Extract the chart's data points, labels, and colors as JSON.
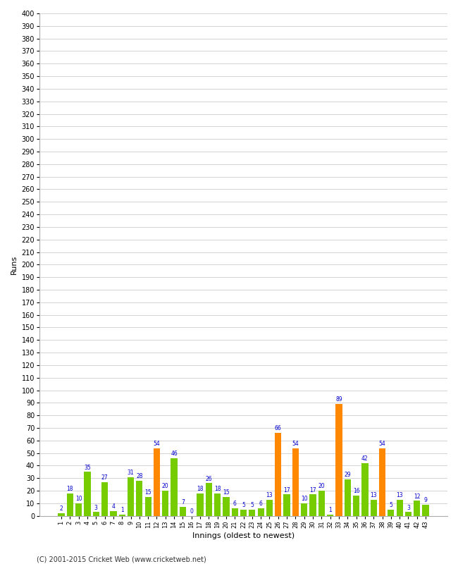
{
  "innings": [
    1,
    2,
    3,
    4,
    5,
    6,
    7,
    8,
    9,
    10,
    11,
    12,
    13,
    14,
    15,
    16,
    17,
    18,
    19,
    20,
    21,
    22,
    23,
    24,
    25,
    26,
    27,
    28,
    29,
    30,
    31,
    32,
    33,
    34,
    35,
    36,
    37,
    38,
    39,
    40,
    41,
    42,
    43
  ],
  "values": [
    2,
    18,
    10,
    35,
    3,
    27,
    4,
    1,
    31,
    28,
    15,
    54,
    20,
    46,
    7,
    0,
    18,
    26,
    18,
    15,
    6,
    5,
    5,
    6,
    13,
    66,
    17,
    54,
    10,
    17,
    20,
    1,
    89,
    29,
    16,
    42,
    13,
    54,
    5,
    13,
    3,
    12,
    9
  ],
  "colors": [
    "#77cc00",
    "#77cc00",
    "#77cc00",
    "#77cc00",
    "#77cc00",
    "#77cc00",
    "#77cc00",
    "#77cc00",
    "#77cc00",
    "#77cc00",
    "#77cc00",
    "#ff8800",
    "#77cc00",
    "#77cc00",
    "#77cc00",
    "#77cc00",
    "#77cc00",
    "#77cc00",
    "#77cc00",
    "#77cc00",
    "#77cc00",
    "#77cc00",
    "#77cc00",
    "#77cc00",
    "#77cc00",
    "#ff8800",
    "#77cc00",
    "#ff8800",
    "#77cc00",
    "#77cc00",
    "#77cc00",
    "#77cc00",
    "#ff8800",
    "#77cc00",
    "#77cc00",
    "#77cc00",
    "#77cc00",
    "#ff8800",
    "#77cc00",
    "#77cc00",
    "#77cc00",
    "#77cc00",
    "#77cc00"
  ],
  "ylim": [
    0,
    400
  ],
  "ytick_step": 10,
  "ylabel": "Runs",
  "xlabel": "Innings (oldest to newest)",
  "footer": "(C) 2001-2015 Cricket Web (www.cricketweb.net)",
  "bar_color_green": "#77cc00",
  "bar_color_orange": "#ff8800",
  "label_color": "#0000cc",
  "grid_color": "#cccccc",
  "bg_color": "#ffffff",
  "plot_bg_color": "#ffffff",
  "spine_color": "#aaaaaa",
  "tick_label_color": "#000000",
  "ylabel_fontsize": 8,
  "xlabel_fontsize": 8,
  "ytick_fontsize": 7,
  "xtick_fontsize": 6,
  "bar_label_fontsize": 5.5,
  "footer_fontsize": 7
}
